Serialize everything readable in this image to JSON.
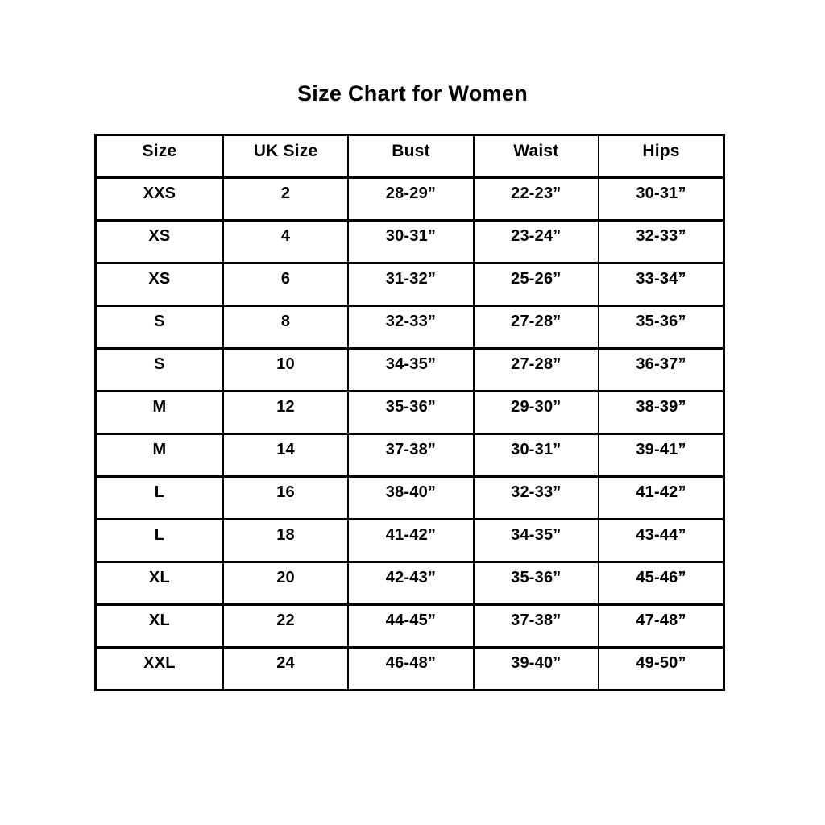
{
  "title": "Size Chart for Women",
  "colors": {
    "background": "#ffffff",
    "text": "#000000",
    "border": "#000000"
  },
  "chart_data": {
    "type": "table",
    "title": "Size Chart for Women",
    "columns": [
      "Size",
      "UK Size",
      "Bust",
      "Waist",
      "Hips"
    ],
    "rows": [
      [
        "XXS",
        "2",
        "28-29”",
        "22-23”",
        "30-31”"
      ],
      [
        "XS",
        "4",
        "30-31”",
        "23-24”",
        "32-33”"
      ],
      [
        "XS",
        "6",
        "31-32”",
        "25-26”",
        "33-34”"
      ],
      [
        "S",
        "8",
        "32-33”",
        "27-28”",
        "35-36”"
      ],
      [
        "S",
        "10",
        "34-35”",
        "27-28”",
        "36-37”"
      ],
      [
        "M",
        "12",
        "35-36”",
        "29-30”",
        "38-39”"
      ],
      [
        "M",
        "14",
        "37-38”",
        "30-31”",
        "39-41”"
      ],
      [
        "L",
        "16",
        "38-40”",
        "32-33”",
        "41-42”"
      ],
      [
        "L",
        "18",
        "41-42”",
        "34-35”",
        "43-44”"
      ],
      [
        "XL",
        "20",
        "42-43”",
        "35-36”",
        "45-46”"
      ],
      [
        "XL",
        "22",
        "44-45”",
        "37-38”",
        "47-48”"
      ],
      [
        "XXL",
        "24",
        "46-48”",
        "39-40”",
        "49-50”"
      ]
    ],
    "layout": {
      "grid": true,
      "header_row": true,
      "text_align": "center"
    }
  }
}
